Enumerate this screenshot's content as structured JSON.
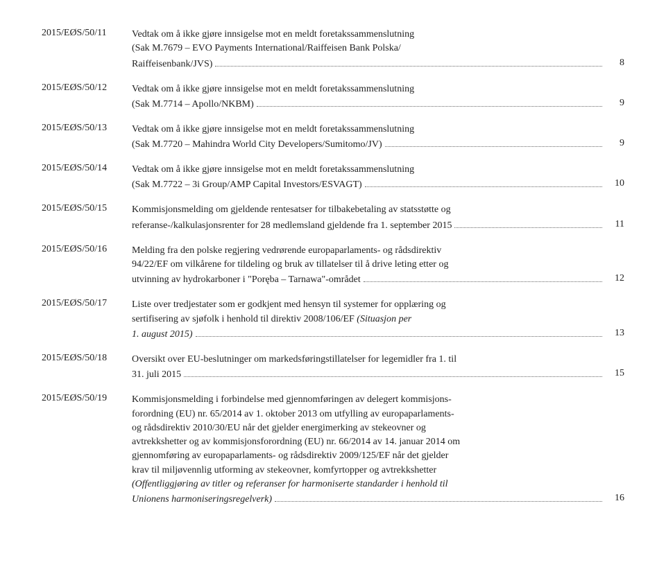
{
  "entries": [
    {
      "id": "2015/EØS/50/11",
      "pre": "Vedtak om å ikke gjøre innsigelse mot en meldt foretakssammenslutning\n(Sak M.7679 – EVO Payments International/Raiffeisen Bank Polska/",
      "last": "Raiffeisenbank/JVS)",
      "page": "8"
    },
    {
      "id": "2015/EØS/50/12",
      "pre": "Vedtak om å ikke gjøre innsigelse mot en meldt foretakssammenslutning",
      "last": "(Sak M.7714 – Apollo/NKBM)",
      "page": "9"
    },
    {
      "id": "2015/EØS/50/13",
      "pre": "Vedtak om å ikke gjøre innsigelse mot en meldt foretakssammenslutning",
      "last": "(Sak M.7720 – Mahindra World City Developers/Sumitomo/JV)",
      "page": "9"
    },
    {
      "id": "2015/EØS/50/14",
      "pre": "Vedtak om å ikke gjøre innsigelse mot en meldt foretakssammenslutning",
      "last": "(Sak M.7722 – 3i Group/AMP Capital Investors/ESVAGT)",
      "page": "10"
    },
    {
      "id": "2015/EØS/50/15",
      "pre": "Kommisjonsmelding om gjeldende rentesatser for tilbakebetaling av statsstøtte og",
      "last": "referanse-/kalkulasjonsrenter for 28 medlemsland gjeldende fra 1. september 2015",
      "page": "11"
    },
    {
      "id": "2015/EØS/50/16",
      "pre": "Melding fra den polske regjering vedrørende europaparlaments- og rådsdirektiv\n94/22/EF om vilkårene for tildeling og bruk av tillatelser til å drive leting etter og",
      "last": "utvinning av hydrokarboner i \"Poręba – Tarnawa\"-området",
      "page": "12"
    },
    {
      "id": "2015/EØS/50/17",
      "pre": "Liste over tredjestater som er godkjent med hensyn til systemer for opplæring og\nsertifisering av sjøfolk i henhold til direktiv 2008/106/EF <i>(Situasjon per</i>",
      "last": "<i>1. august 2015)</i>",
      "page": "13"
    },
    {
      "id": "2015/EØS/50/18",
      "pre": "Oversikt over EU-beslutninger om markedsføringstillatelser for legemidler fra 1. til",
      "last": "31. juli 2015",
      "page": "15"
    },
    {
      "id": "2015/EØS/50/19",
      "pre": "Kommisjonsmelding i forbindelse med gjennomføringen av delegert kommisjons-\nforordning (EU) nr. 65/2014 av 1. oktober 2013 om utfylling av europaparlaments-\nog rådsdirektiv 2010/30/EU når det gjelder energimerking av stekeovner og\navtrekkshetter og av kommisjonsforordning (EU) nr. 66/2014 av 14. januar 2014 om\ngjennomføring av europaparlaments- og rådsdirektiv 2009/125/EF når det gjelder\nkrav til miljøvennlig utforming av stekeovner, komfyrtopper og avtrekkshetter\n<i>(Offentliggjøring av titler og referanser for harmoniserte standarder i henhold til</i>",
      "last": "<i>Unionens harmoniseringsregelverk)</i>",
      "page": "16"
    }
  ]
}
